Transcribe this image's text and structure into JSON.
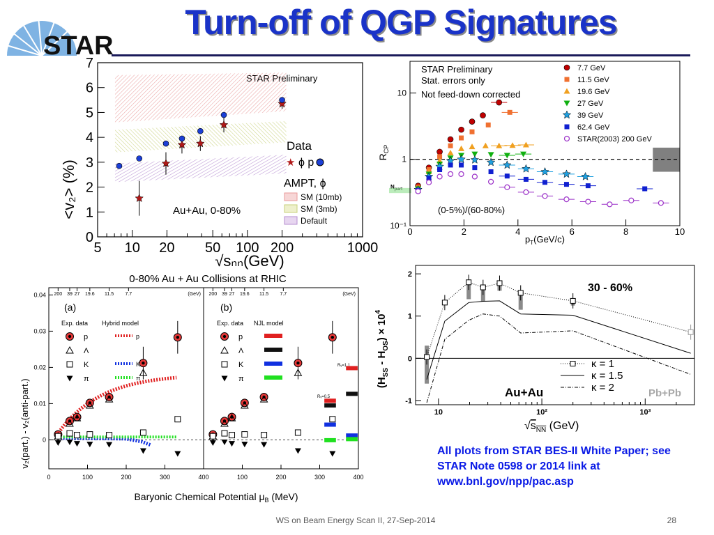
{
  "slide": {
    "title": "Turn-off of QGP Signatures",
    "logo_text": "STAR",
    "note": "All plots from STAR BES-II White Paper; see STAR Note 0598 or 2014 link at  www.bnl.gov/npp/pac.asp",
    "footer": "WS on Beam Energy Scan II, 27-Sep-2014",
    "page": "28",
    "accent_color": "#1a33c8",
    "note_color": "#0a1ae6"
  },
  "chart_data": [
    {
      "id": "v2-vs-energy",
      "type": "scatter",
      "xscale": "log",
      "xlim": [
        5,
        1000
      ],
      "ylim": [
        0,
        7
      ],
      "xticks": [
        "5",
        "10",
        "20",
        "50",
        "100",
        "200",
        "1000"
      ],
      "xtick_values": [
        5,
        10,
        20,
        50,
        100,
        200,
        1000
      ],
      "yticks": [
        "0",
        "1",
        "2",
        "3",
        "4",
        "5",
        "6",
        "7"
      ],
      "ylabel": "<v₂> (%)",
      "xlabel": "√sₙₙ(GeV)",
      "annotation_prelim": "STAR Preliminary",
      "annotation_system": "Au+Au, 0-80%",
      "legend_data_title": "Data",
      "legend_data_entries": "ϕ  p",
      "legend_ampt_title": "AMPT, ϕ",
      "legend_bands": [
        "SM (10mb)",
        "SM (3mb)",
        "Default"
      ],
      "band_colors": [
        "#e89a9a",
        "#c7d07a",
        "#b48ccf"
      ],
      "series": [
        {
          "name": "p",
          "marker": "circle",
          "color": "#1b3fd6",
          "x": [
            7.7,
            11.5,
            19.6,
            27,
            39,
            62.4,
            200
          ],
          "y": [
            2.85,
            3.15,
            3.75,
            3.95,
            4.25,
            4.9,
            5.5
          ]
        },
        {
          "name": "ϕ",
          "marker": "star",
          "color": "#b01818",
          "x": [
            11.5,
            19.6,
            27,
            39,
            62.4,
            200
          ],
          "y": [
            1.55,
            2.95,
            3.7,
            3.75,
            4.5,
            5.35
          ],
          "err": [
            0.7,
            0.45,
            0.35,
            0.3,
            0.3,
            0.2
          ]
        }
      ],
      "bands": [
        {
          "name": "SM (10mb)",
          "x": [
            7.7,
            200
          ],
          "lo": [
            4.6,
            5.05
          ],
          "hi": [
            6.5,
            6.6
          ]
        },
        {
          "name": "SM (3mb)",
          "x": [
            7.7,
            200
          ],
          "lo": [
            3.4,
            3.8
          ],
          "hi": [
            4.3,
            4.65
          ]
        },
        {
          "name": "Default",
          "x": [
            7.7,
            200
          ],
          "lo": [
            2.2,
            2.55
          ],
          "hi": [
            2.95,
            3.3
          ]
        }
      ]
    },
    {
      "id": "rcp",
      "type": "scatter",
      "yscale": "log",
      "xlim": [
        0,
        10
      ],
      "ylim": [
        0.1,
        30
      ],
      "xticks": [
        "0",
        "2",
        "4",
        "6",
        "8",
        "10"
      ],
      "xtick_values": [
        0,
        2,
        4,
        6,
        8,
        10
      ],
      "yticks": [
        "10⁻¹",
        "1",
        "10"
      ],
      "ytick_values": [
        0.1,
        1,
        10
      ],
      "ylabel": "R",
      "ylabel_sub": "CP",
      "xlabel": "p",
      "xlabel_rest": "(GeV/c)",
      "annotations": [
        "STAR Preliminary",
        "Stat. errors only",
        "Not feed-down corrected"
      ],
      "centrality": "(0-5%)/(60-80%)",
      "npart_label": "N",
      "npart_sub": "part",
      "series": [
        {
          "name": "7.7 GeV",
          "marker": "circle",
          "color": "#c00000",
          "x": [
            0.3,
            0.7,
            1.1,
            1.5,
            1.9,
            2.3,
            2.7,
            3.3
          ],
          "y": [
            0.4,
            0.75,
            1.3,
            2.0,
            2.8,
            3.7,
            4.6,
            7.2
          ]
        },
        {
          "name": "11.5 GeV",
          "marker": "square",
          "color": "#f07030",
          "x": [
            0.3,
            0.7,
            1.1,
            1.5,
            1.9,
            2.3,
            2.9,
            3.7
          ],
          "y": [
            0.38,
            0.7,
            1.1,
            1.6,
            2.1,
            2.6,
            3.3,
            5.1
          ]
        },
        {
          "name": "19.6 GeV",
          "marker": "triangle",
          "color": "#f0a020",
          "x": [
            0.3,
            0.7,
            1.1,
            1.5,
            1.9,
            2.3,
            2.8,
            3.3,
            3.8,
            4.3
          ],
          "y": [
            0.38,
            0.65,
            0.95,
            1.25,
            1.45,
            1.55,
            1.6,
            1.6,
            1.62,
            1.65
          ]
        },
        {
          "name": "27 GeV",
          "marker": "tridown",
          "color": "#10b010",
          "x": [
            0.3,
            0.7,
            1.1,
            1.5,
            1.9,
            2.4,
            3.0,
            3.6,
            4.2
          ],
          "y": [
            0.36,
            0.6,
            0.85,
            1.05,
            1.15,
            1.2,
            1.18,
            1.15,
            1.2
          ]
        },
        {
          "name": "39 GeV",
          "marker": "star",
          "color": "#20a0e0",
          "x": [
            0.3,
            0.7,
            1.1,
            1.5,
            1.9,
            2.4,
            3.0,
            3.6,
            4.3,
            5.0,
            5.8,
            6.5
          ],
          "y": [
            0.35,
            0.55,
            0.78,
            0.95,
            1.0,
            0.98,
            0.9,
            0.82,
            0.72,
            0.65,
            0.6,
            0.55
          ]
        },
        {
          "name": "62.4 GeV",
          "marker": "square",
          "color": "#1020d0",
          "x": [
            0.3,
            0.7,
            1.1,
            1.5,
            1.9,
            2.4,
            3.0,
            3.6,
            4.3,
            5.0,
            5.8,
            6.6,
            8.7
          ],
          "y": [
            0.34,
            0.52,
            0.7,
            0.82,
            0.82,
            0.75,
            0.65,
            0.56,
            0.5,
            0.45,
            0.42,
            0.4,
            0.36
          ]
        },
        {
          "name": "STAR(2003) 200 GeV",
          "marker": "opencircle",
          "color": "#9b30c8",
          "x": [
            0.3,
            0.7,
            1.1,
            1.5,
            1.9,
            2.4,
            3.0,
            3.6,
            4.3,
            5.0,
            5.8,
            6.6,
            7.4,
            8.2,
            9.3
          ],
          "y": [
            0.33,
            0.45,
            0.55,
            0.6,
            0.6,
            0.55,
            0.46,
            0.38,
            0.32,
            0.28,
            0.25,
            0.23,
            0.21,
            0.24,
            0.22
          ]
        }
      ],
      "unity_line": 1,
      "syst_box": {
        "x": [
          9.0,
          10.0
        ],
        "y": [
          0.65,
          1.5
        ],
        "color": "#808080"
      }
    },
    {
      "id": "delta-v2",
      "type": "scatter",
      "title": "0-80% Au + Au Collisions at RHIC",
      "xlim": [
        0,
        400
      ],
      "ylim": [
        -0.008,
        0.042
      ],
      "xlabel": "Baryonic Chemical Potential μ",
      "xlabel_sub": "B",
      "xlabel_unit": " (MeV)",
      "ylabel": "v₂(part.) - v₂(anti-part.)",
      "yticks": [
        "0",
        "0.01",
        "0.02",
        "0.03",
        "0.04"
      ],
      "ytick_values": [
        0,
        0.01,
        0.02,
        0.03,
        0.04
      ],
      "xticks_a": [
        "0",
        "100",
        "200",
        "300",
        "400"
      ],
      "xticks_b": [
        "100",
        "200",
        "300",
        "400"
      ],
      "xtick_values": [
        0,
        100,
        200,
        300,
        400
      ],
      "top_axis_labels": [
        "200",
        "39",
        "27",
        "19.6",
        "11.5",
        "7.7"
      ],
      "top_axis_values": [
        24,
        54,
        73,
        106,
        156,
        206
      ],
      "top_axis_unit": "(GeV)",
      "panel_a": "(a)",
      "panel_b": "(b)",
      "legend_exp_title": "Exp. data",
      "legend_model_a": "Hybrid model",
      "legend_model_b": "NJL model",
      "legend_species": [
        "p",
        "Λ",
        "K",
        "π"
      ],
      "njl_label_1": "Rᵥ=0.5",
      "njl_label_2": "Rᵥ=1.1",
      "model_colors": [
        "#e02020",
        "#101010",
        "#1030e0",
        "#20e020"
      ],
      "series": [
        {
          "name": "p",
          "marker": "dotcircle",
          "x": [
            24,
            54,
            73,
            106,
            156,
            244,
            333
          ],
          "y": [
            0.0015,
            0.0052,
            0.0063,
            0.0102,
            0.0118,
            0.0212,
            0.0283
          ]
        },
        {
          "name": "Λ",
          "marker": "opentriangle",
          "x": [
            24,
            54,
            73,
            106,
            156,
            244
          ],
          "y": [
            0.001,
            0.0045,
            0.006,
            0.0095,
            0.0112,
            0.0185
          ]
        },
        {
          "name": "K",
          "marker": "opensquare",
          "x": [
            24,
            54,
            73,
            106,
            156,
            244,
            333
          ],
          "y": [
            0.001,
            0.0018,
            0.0013,
            0.0015,
            0.0013,
            0.002,
            0.0057
          ]
        },
        {
          "name": "π",
          "marker": "tridown",
          "x": [
            24,
            54,
            73,
            106,
            156,
            244,
            333
          ],
          "y": [
            -0.0008,
            -0.0006,
            -0.001,
            -0.0012,
            -0.0013,
            -0.003,
            -0.0038
          ]
        }
      ]
    },
    {
      "id": "cme-correlator",
      "type": "line",
      "xscale": "log",
      "xlim": [
        6,
        3000
      ],
      "ylim": [
        -1.1,
        2.2
      ],
      "xticks": [
        "10",
        "10²",
        "10³"
      ],
      "xtick_values": [
        10,
        100,
        1000
      ],
      "yticks": [
        "-1",
        "0",
        "1",
        "2"
      ],
      "ytick_values": [
        -1,
        0,
        1,
        2
      ],
      "ylabel": "(H",
      "ylabel_rest": " - H",
      "ylabel_tail": ") × 10",
      "xlabel": "(GeV)",
      "centrality": "30 - 60%",
      "system_auau": "Au+Au",
      "system_pbpb": "Pb+Pb",
      "legend": [
        "κ = 1",
        "κ = 1.5",
        "κ = 2"
      ],
      "series": [
        {
          "name": "κ = 1",
          "style": "dotted",
          "x": [
            7.7,
            11.5,
            19.6,
            27,
            39,
            62.4,
            200,
            2760
          ],
          "y": [
            0.03,
            1.32,
            1.8,
            1.68,
            1.78,
            1.55,
            1.36,
            0.62
          ]
        },
        {
          "name": "κ = 1.5",
          "style": "solid",
          "x": [
            7.7,
            11.5,
            19.6,
            27,
            39,
            62.4,
            200,
            2760
          ],
          "y": [
            -0.5,
            0.88,
            1.32,
            1.35,
            1.36,
            1.05,
            1.02,
            0.12
          ]
        },
        {
          "name": "κ = 2",
          "style": "dashdot",
          "x": [
            7.7,
            11.5,
            19.6,
            27,
            39,
            62.4,
            200,
            2760
          ],
          "y": [
            -1.05,
            0.45,
            0.9,
            1.05,
            1.0,
            0.6,
            0.65,
            -0.38
          ]
        }
      ]
    }
  ]
}
